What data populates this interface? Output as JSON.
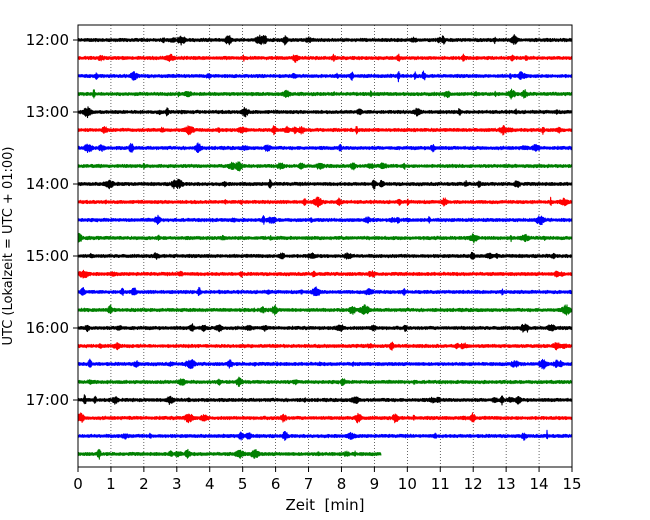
{
  "chart_data": {
    "type": "line",
    "title": "",
    "xlabel": "Zeit  [min]",
    "ylabel": "UTC (Lokalzeit = UTC + 01:00)",
    "xlim": [
      0,
      15
    ],
    "x_ticks": [
      "0",
      "1",
      "2",
      "3",
      "4",
      "5",
      "6",
      "7",
      "8",
      "9",
      "10",
      "11",
      "12",
      "13",
      "14",
      "15"
    ],
    "y_ticks": [
      {
        "label": "12:00",
        "row": 0
      },
      {
        "label": "13:00",
        "row": 4
      },
      {
        "label": "14:00",
        "row": 8
      },
      {
        "label": "15:00",
        "row": 12
      },
      {
        "label": "16:00",
        "row": 16
      },
      {
        "label": "17:00",
        "row": 20
      }
    ],
    "vertical_grid": true,
    "grid_style": "dotted",
    "minutes_per_row": 15,
    "color_cycle": [
      "#000000",
      "#ff0000",
      "#0000ff",
      "#008000"
    ],
    "rows": [
      {
        "start": "12:00",
        "duration_min": 15
      },
      {
        "start": "12:15",
        "duration_min": 15
      },
      {
        "start": "12:30",
        "duration_min": 15
      },
      {
        "start": "12:45",
        "duration_min": 15
      },
      {
        "start": "13:00",
        "duration_min": 15
      },
      {
        "start": "13:15",
        "duration_min": 15
      },
      {
        "start": "13:30",
        "duration_min": 15
      },
      {
        "start": "13:45",
        "duration_min": 15
      },
      {
        "start": "14:00",
        "duration_min": 15
      },
      {
        "start": "14:15",
        "duration_min": 15
      },
      {
        "start": "14:30",
        "duration_min": 15
      },
      {
        "start": "14:45",
        "duration_min": 15
      },
      {
        "start": "15:00",
        "duration_min": 15
      },
      {
        "start": "15:15",
        "duration_min": 15
      },
      {
        "start": "15:30",
        "duration_min": 15
      },
      {
        "start": "15:45",
        "duration_min": 15
      },
      {
        "start": "16:00",
        "duration_min": 15
      },
      {
        "start": "16:15",
        "duration_min": 15
      },
      {
        "start": "16:30",
        "duration_min": 15
      },
      {
        "start": "16:45",
        "duration_min": 15
      },
      {
        "start": "17:00",
        "duration_min": 15
      },
      {
        "start": "17:15",
        "duration_min": 15
      },
      {
        "start": "17:30",
        "duration_min": 15
      },
      {
        "start": "17:45",
        "duration_min": 9.2
      }
    ]
  }
}
